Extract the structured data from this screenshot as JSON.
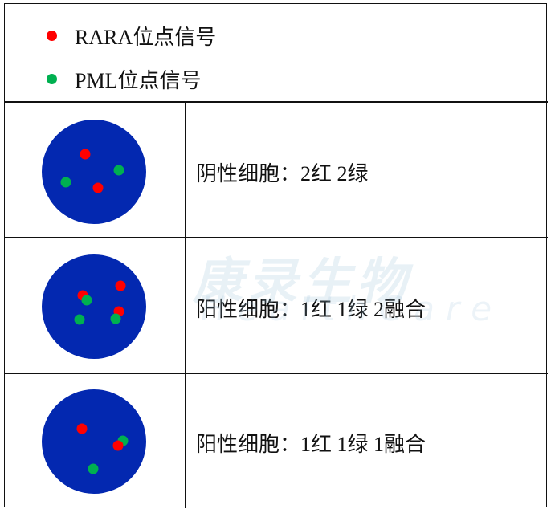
{
  "legend": [
    {
      "label": "RARA位点信号",
      "color": "#ff0000"
    },
    {
      "label": "PML位点信号",
      "color": "#00b050"
    }
  ],
  "colors": {
    "cell": "#0328b0",
    "red": "#ff0000",
    "green": "#00b050"
  },
  "rows": [
    {
      "label": "阴性细胞：2红 2绿",
      "signals": [
        {
          "color": "red"
        },
        {
          "color": "green"
        },
        {
          "color": "green"
        },
        {
          "color": "red"
        }
      ]
    },
    {
      "label": "阳性细胞：1红 1绿 2融合",
      "signals": [
        {
          "color": "red"
        },
        {
          "color": "red"
        },
        {
          "color": "green"
        },
        {
          "color": "red"
        },
        {
          "color": "green"
        },
        {
          "color": "green"
        }
      ]
    },
    {
      "label": "阳性细胞：1红 1绿 1融合",
      "signals": [
        {
          "color": "red"
        },
        {
          "color": "green"
        },
        {
          "color": "red"
        },
        {
          "color": "green"
        }
      ]
    }
  ],
  "watermark": {
    "text": "康录生物",
    "subtext": "HealthCare"
  }
}
